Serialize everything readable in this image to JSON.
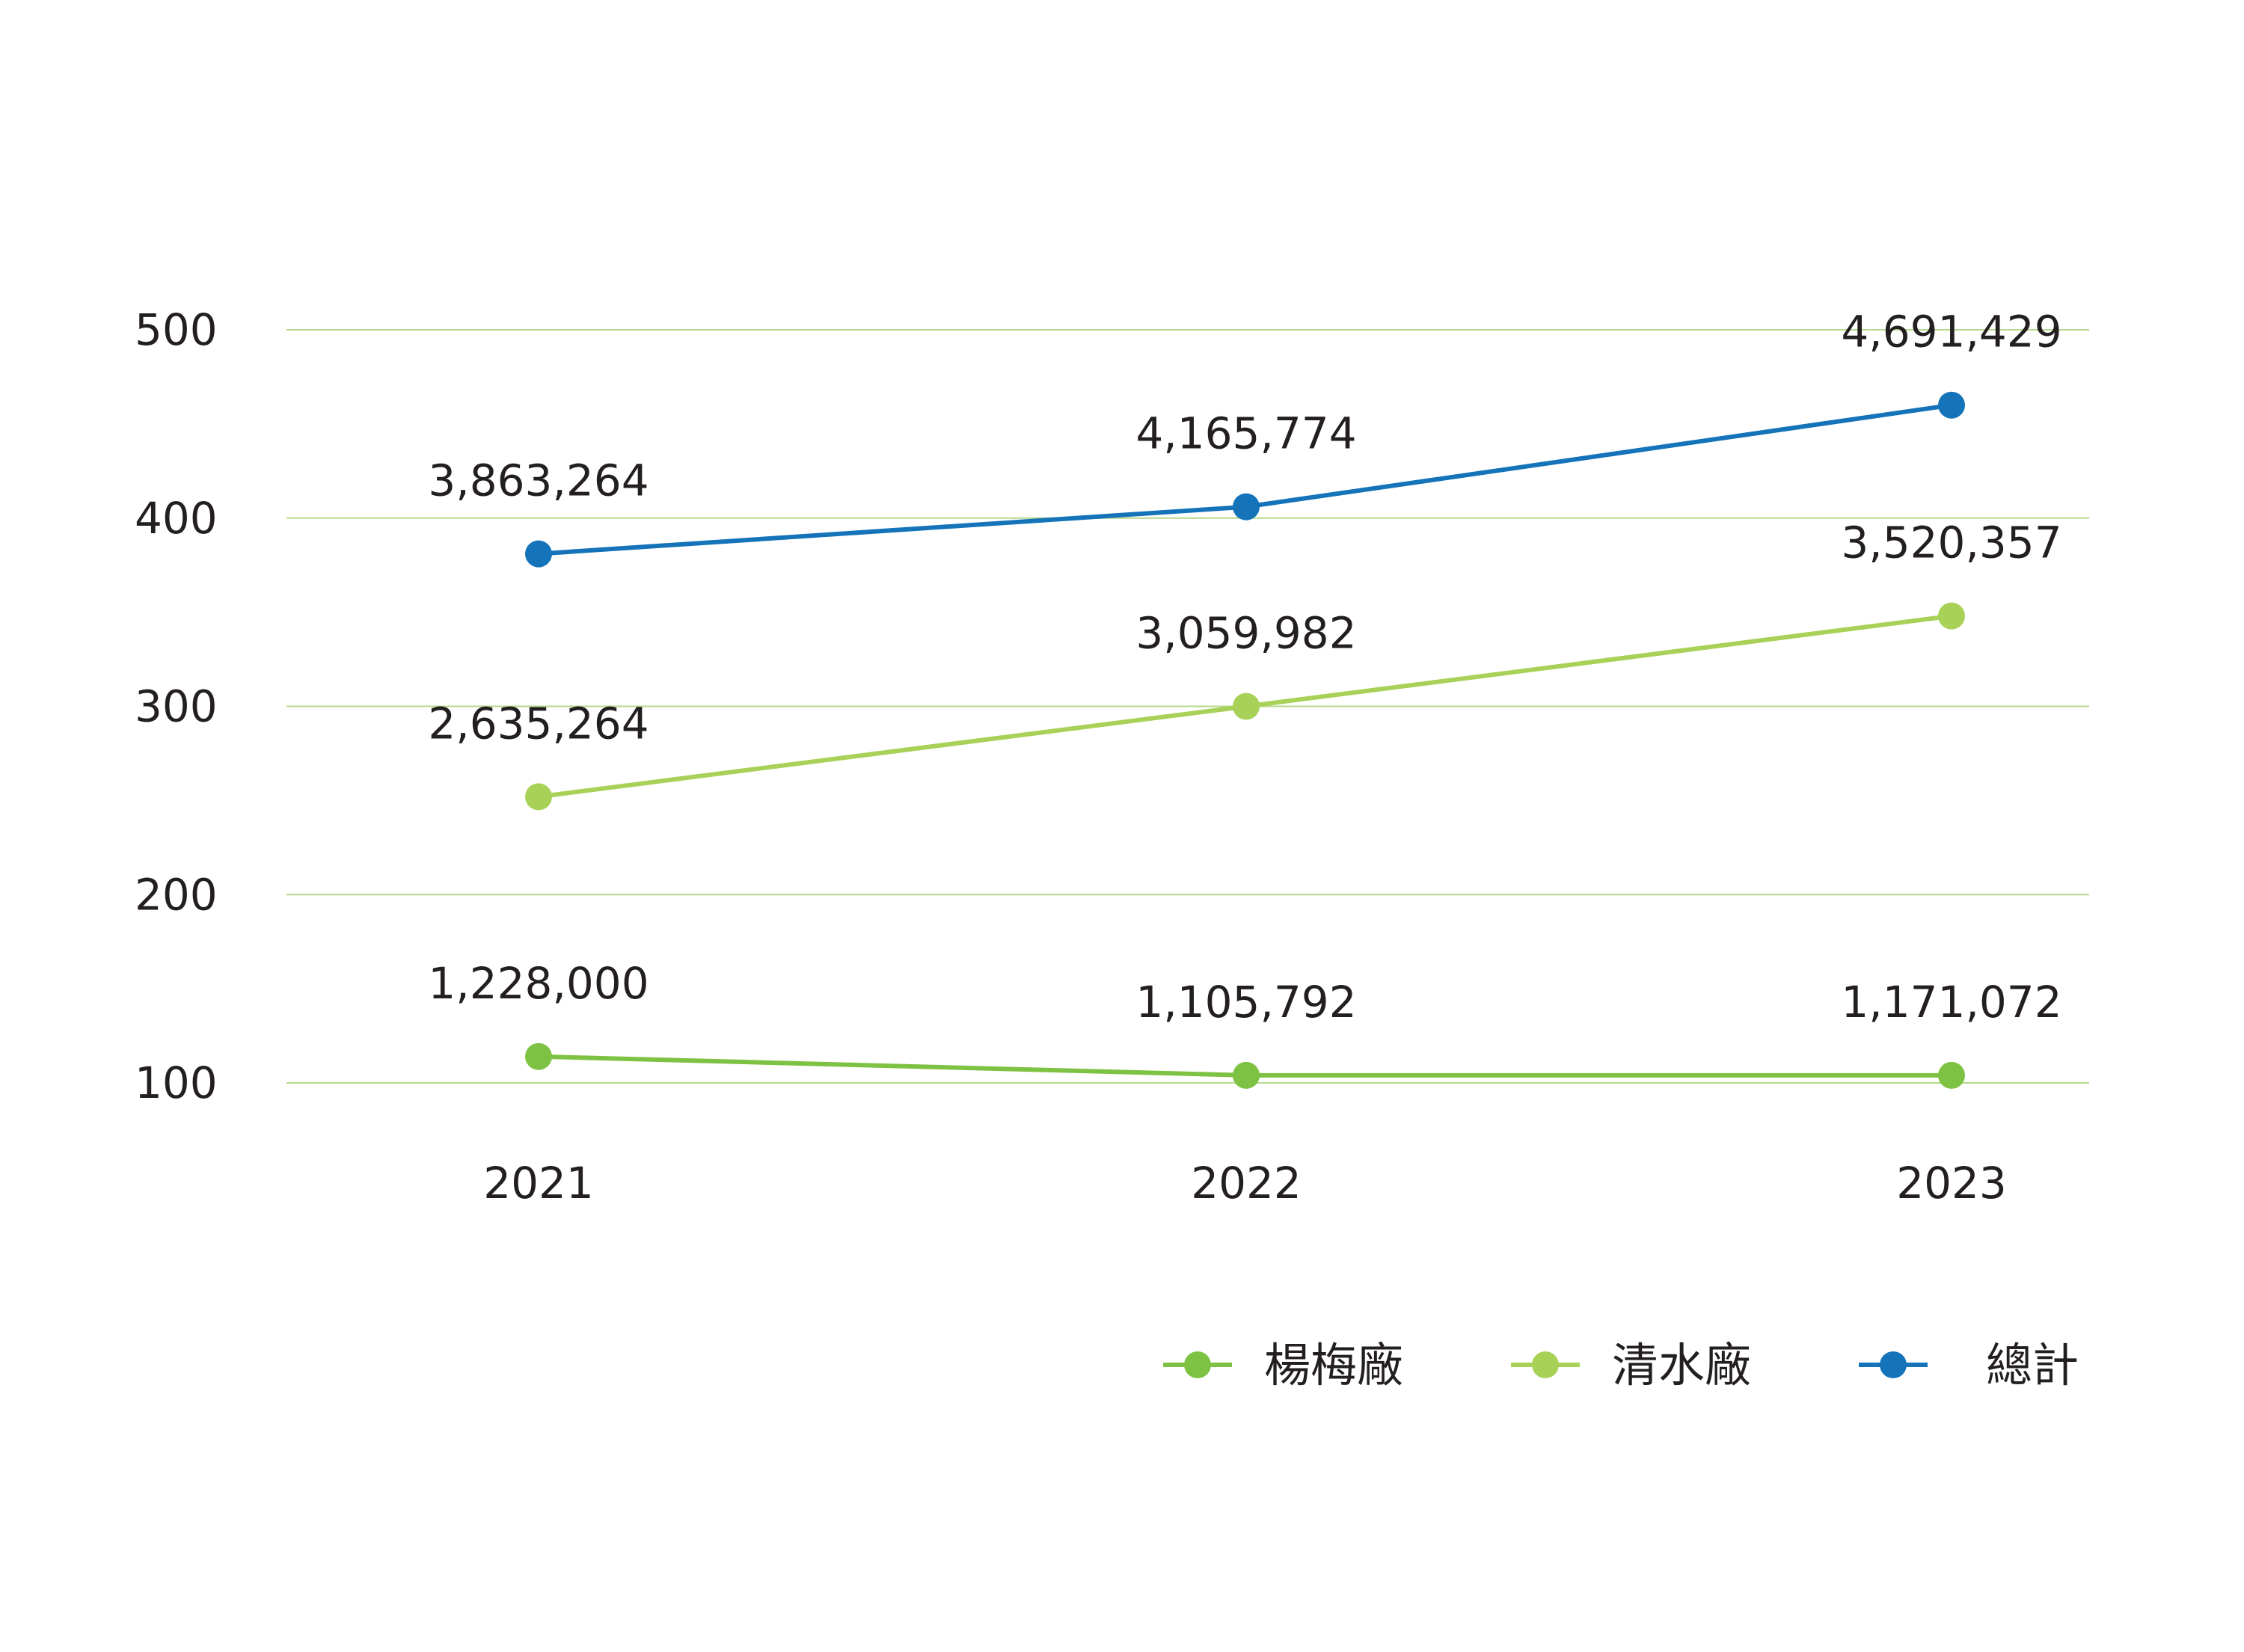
{
  "chart_data": {
    "type": "line",
    "title": "",
    "xlabel": "",
    "ylabel": "",
    "categories": [
      "2021",
      "2022",
      "2023"
    ],
    "ylim": [
      100,
      500
    ],
    "yticks": [
      100,
      200,
      300,
      400,
      500
    ],
    "grid": true,
    "legend_position": "bottom-right",
    "series": [
      {
        "name": "楊梅廠",
        "color": "#7dc243",
        "values": [
          114,
          104,
          104
        ],
        "labels": [
          "1,228,000",
          "1,105,792",
          "1,171,072"
        ]
      },
      {
        "name": "清水廠",
        "color": "#a8d158",
        "values": [
          252,
          300,
          348
        ],
        "labels": [
          "2,635,264",
          "3,059,982",
          "3,520,357"
        ]
      },
      {
        "name": "總計",
        "color": "#1473b9",
        "values": [
          381,
          406,
          460
        ],
        "labels": [
          "3,863,264",
          "4,165,774",
          "4,691,429"
        ]
      }
    ],
    "gridline_color": "#b5d98a"
  }
}
